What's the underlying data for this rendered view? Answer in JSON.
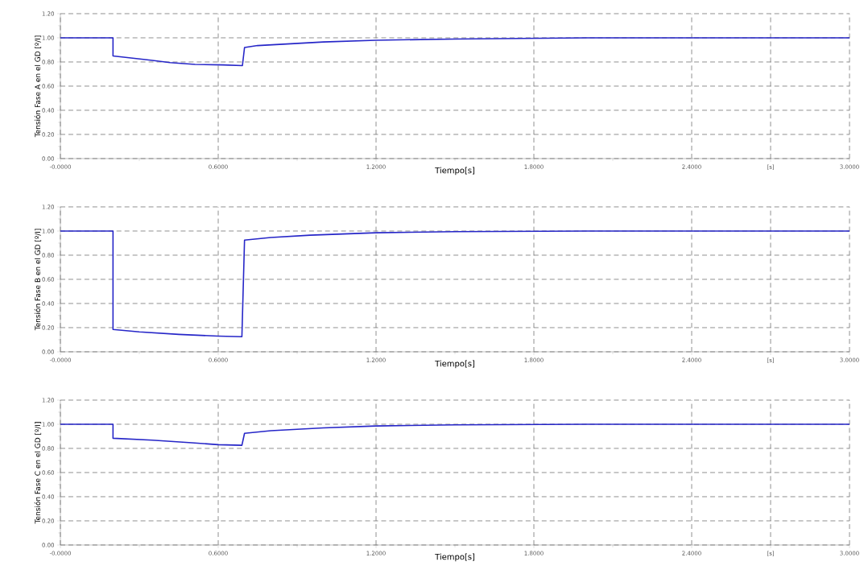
{
  "chart_data": [
    {
      "type": "line",
      "xlabel": "Tiempo[s]",
      "ylabel": "Tensión Fase A en el GD [º/I]",
      "color": "#2626c8",
      "grid": true,
      "x": [
        0,
        0.2,
        0.2,
        0.343,
        0.417,
        0.512,
        0.618,
        0.692,
        0.7,
        0.75,
        1.0,
        1.2,
        1.5,
        2.0,
        3.0
      ],
      "values": [
        1.0,
        1.0,
        0.85,
        0.815,
        0.795,
        0.78,
        0.776,
        0.77,
        0.92,
        0.936,
        0.966,
        0.98,
        0.99,
        1.0,
        1.0
      ],
      "xlim": [
        0,
        3.0
      ],
      "ylim": [
        0,
        1.2
      ],
      "xticks": [
        {
          "value": 0,
          "label": "-0.0000"
        },
        {
          "value": 0.3,
          "label": null
        },
        {
          "value": 0.6,
          "label": "0.6000"
        },
        {
          "value": 0.9,
          "label": null
        },
        {
          "value": 1.2,
          "label": "1.2000"
        },
        {
          "value": 1.5,
          "label": null
        },
        {
          "value": 1.8,
          "label": "1.8000"
        },
        {
          "value": 2.1,
          "label": null
        },
        {
          "value": 2.4,
          "label": "2.4000"
        },
        {
          "value": 2.7,
          "label": "[s]"
        },
        {
          "value": 3.0,
          "label": "3.0000"
        }
      ],
      "yticks": [
        {
          "value": 0,
          "label": "0.00"
        },
        {
          "value": 0.1,
          "label": null
        },
        {
          "value": 0.2,
          "label": "0.20"
        },
        {
          "value": 0.3,
          "label": null
        },
        {
          "value": 0.4,
          "label": "0.40"
        },
        {
          "value": 0.5,
          "label": null
        },
        {
          "value": 0.6,
          "label": "0.60"
        },
        {
          "value": 0.7,
          "label": null
        },
        {
          "value": 0.8,
          "label": "0.80"
        },
        {
          "value": 0.9,
          "label": null
        },
        {
          "value": 1.0,
          "label": "1.00"
        },
        {
          "value": 1.1,
          "label": null
        },
        {
          "value": 1.2,
          "label": "1.20"
        }
      ]
    },
    {
      "type": "line",
      "xlabel": "Tiempo[s]",
      "ylabel": "Tensión Fase B en el GD [º/I]",
      "color": "#2626c8",
      "grid": true,
      "x": [
        0,
        0.2,
        0.2,
        0.3,
        0.45,
        0.6,
        0.69,
        0.7,
        0.8,
        0.95,
        1.2,
        1.5,
        2.0,
        3.0
      ],
      "values": [
        1.0,
        1.0,
        0.185,
        0.165,
        0.144,
        0.13,
        0.125,
        0.925,
        0.947,
        0.966,
        0.986,
        0.995,
        1.0,
        1.0
      ],
      "xlim": [
        0,
        3.0
      ],
      "ylim": [
        0,
        1.2
      ],
      "xticks": [
        {
          "value": 0,
          "label": "-0.0000"
        },
        {
          "value": 0.3,
          "label": null
        },
        {
          "value": 0.6,
          "label": "0.6000"
        },
        {
          "value": 0.9,
          "label": null
        },
        {
          "value": 1.2,
          "label": "1.2000"
        },
        {
          "value": 1.5,
          "label": null
        },
        {
          "value": 1.8,
          "label": "1.8000"
        },
        {
          "value": 2.1,
          "label": null
        },
        {
          "value": 2.4,
          "label": "2.4000"
        },
        {
          "value": 2.7,
          "label": "[s]"
        },
        {
          "value": 3.0,
          "label": "3.0000"
        }
      ],
      "yticks": [
        {
          "value": 0,
          "label": "0.00"
        },
        {
          "value": 0.1,
          "label": null
        },
        {
          "value": 0.2,
          "label": "0.20"
        },
        {
          "value": 0.3,
          "label": null
        },
        {
          "value": 0.4,
          "label": "0.40"
        },
        {
          "value": 0.5,
          "label": null
        },
        {
          "value": 0.6,
          "label": "0.60"
        },
        {
          "value": 0.7,
          "label": null
        },
        {
          "value": 0.8,
          "label": "0.80"
        },
        {
          "value": 0.9,
          "label": null
        },
        {
          "value": 1.0,
          "label": "1.00"
        },
        {
          "value": 1.1,
          "label": null
        },
        {
          "value": 1.2,
          "label": "1.20"
        }
      ]
    },
    {
      "type": "line",
      "xlabel": "Tiempo[s]",
      "ylabel": "Tensión Fase C en el GD [º/I]",
      "color": "#2626c8",
      "grid": true,
      "x": [
        0,
        0.2,
        0.2,
        0.35,
        0.5,
        0.6,
        0.69,
        0.7,
        0.8,
        1.0,
        1.2,
        1.5,
        2.0,
        3.0
      ],
      "values": [
        1.0,
        1.0,
        0.884,
        0.868,
        0.847,
        0.831,
        0.826,
        0.925,
        0.947,
        0.97,
        0.986,
        0.995,
        1.0,
        1.0
      ],
      "xlim": [
        0,
        3.0
      ],
      "ylim": [
        0,
        1.2
      ],
      "xticks": [
        {
          "value": 0,
          "label": "-0.0000"
        },
        {
          "value": 0.3,
          "label": null
        },
        {
          "value": 0.6,
          "label": "0.6000"
        },
        {
          "value": 0.9,
          "label": null
        },
        {
          "value": 1.2,
          "label": "1.2000"
        },
        {
          "value": 1.5,
          "label": null
        },
        {
          "value": 1.8,
          "label": "1.8000"
        },
        {
          "value": 2.1,
          "label": null
        },
        {
          "value": 2.4,
          "label": "2.4000"
        },
        {
          "value": 2.7,
          "label": "[s]"
        },
        {
          "value": 3.0,
          "label": "3.0000"
        }
      ],
      "yticks": [
        {
          "value": 0,
          "label": "0.00"
        },
        {
          "value": 0.1,
          "label": null
        },
        {
          "value": 0.2,
          "label": "0.20"
        },
        {
          "value": 0.3,
          "label": null
        },
        {
          "value": 0.4,
          "label": "0.40"
        },
        {
          "value": 0.5,
          "label": null
        },
        {
          "value": 0.6,
          "label": "0.60"
        },
        {
          "value": 0.7,
          "label": null
        },
        {
          "value": 0.8,
          "label": "0.80"
        },
        {
          "value": 0.9,
          "label": null
        },
        {
          "value": 1.0,
          "label": "1.00"
        },
        {
          "value": 1.1,
          "label": null
        },
        {
          "value": 1.2,
          "label": "1.20"
        }
      ]
    }
  ]
}
